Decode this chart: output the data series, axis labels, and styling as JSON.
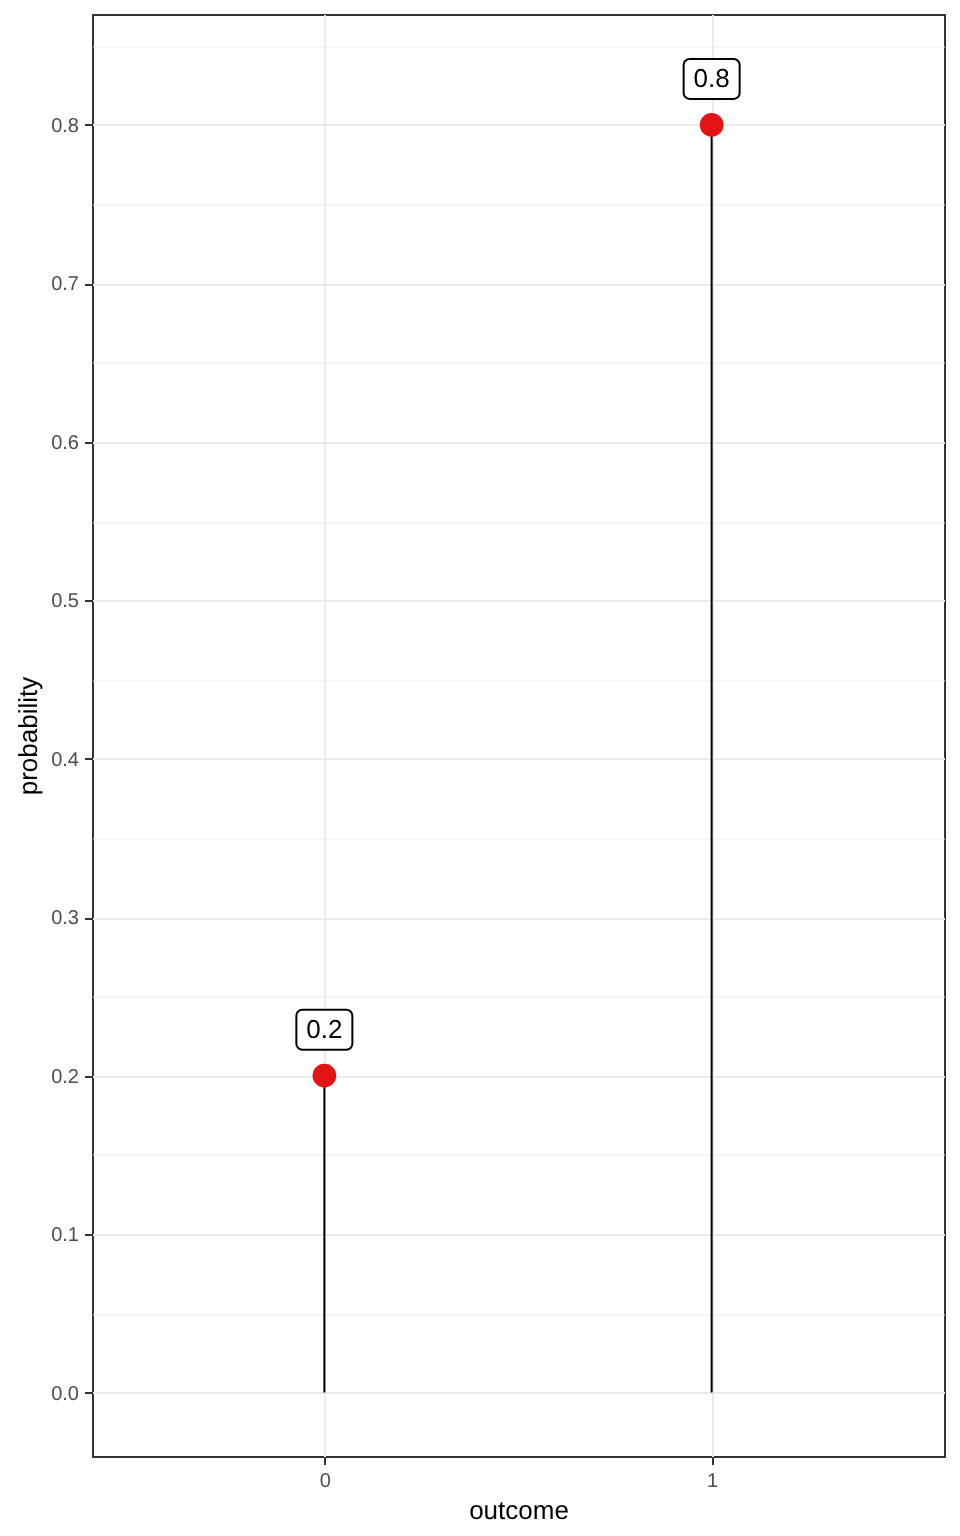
{
  "chart_data": {
    "type": "lollipop",
    "xlabel": "outcome",
    "ylabel": "probability",
    "categories": [
      "0",
      "1"
    ],
    "values": [
      0.2,
      0.8
    ],
    "color": "#e41414",
    "marker": "circle",
    "data_labels": true,
    "ylim": [
      -0.04,
      0.87
    ],
    "yticks": [
      {
        "value": 0,
        "label": "0.0"
      },
      {
        "value": 0.05,
        "label": null
      },
      0.1,
      {
        "value": 0.15,
        "label": null
      },
      0.2,
      {
        "value": 0.25,
        "label": null
      },
      0.3,
      {
        "value": 0.35,
        "label": null
      },
      0.4,
      {
        "value": 0.45,
        "label": null
      },
      0.5,
      {
        "value": 0.55,
        "label": null
      },
      0.6,
      {
        "value": 0.65,
        "label": null
      },
      0.7,
      {
        "value": 0.75,
        "label": null
      },
      0.8,
      {
        "value": 0.85,
        "label": null
      }
    ],
    "grid": true
  }
}
